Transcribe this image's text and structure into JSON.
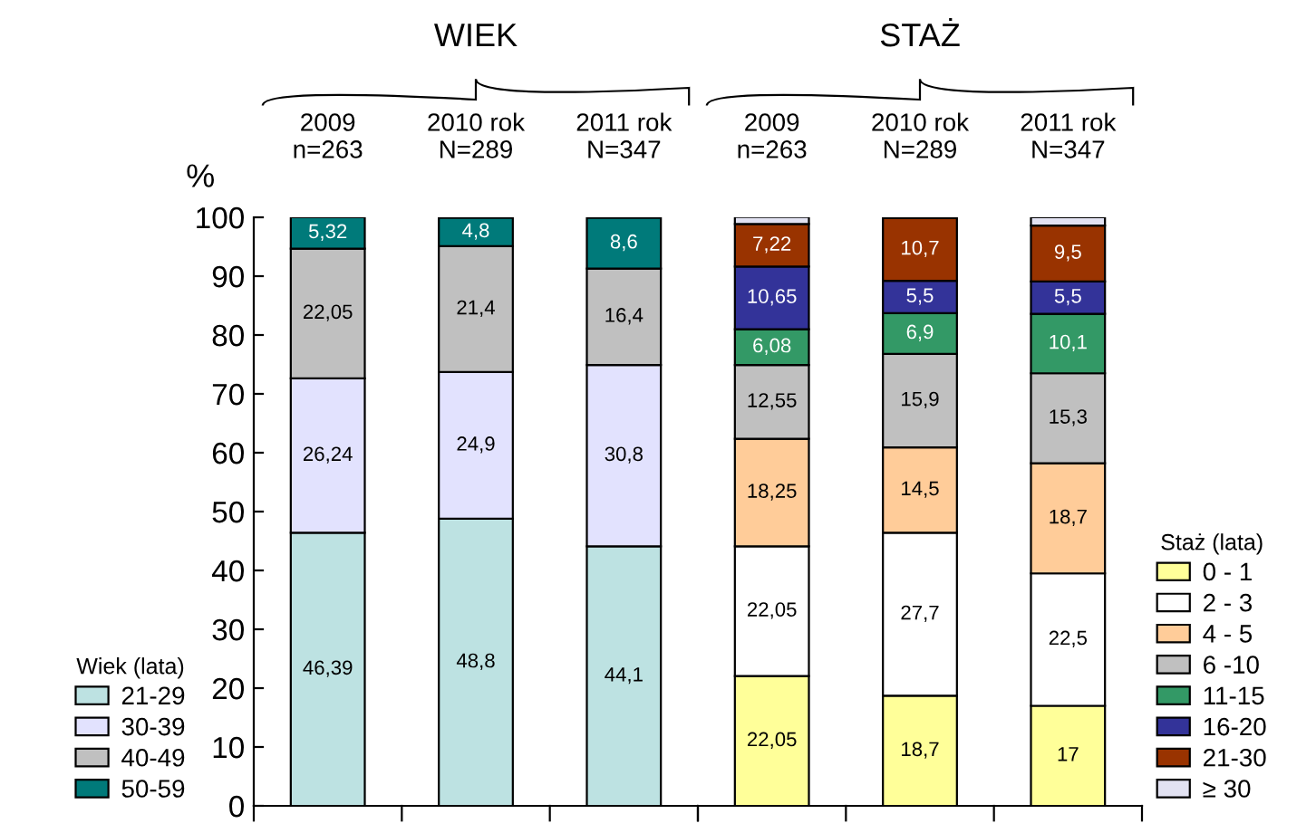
{
  "chart_data": [
    {
      "type": "bar",
      "title": "WIEK",
      "ylabel": "%",
      "categories": [
        "2009\nn=263",
        "2010 rok\nN=289",
        "2011 rok\nN=347"
      ],
      "stacked": true,
      "ylim": [
        0,
        100
      ],
      "yticks": [
        0,
        10,
        20,
        30,
        40,
        50,
        60,
        70,
        80,
        90,
        100
      ],
      "grid": false,
      "legend": "bottom left",
      "legend_title": "Wiek (lata)",
      "series": [
        {
          "name": "21-29",
          "color": "#bde2e2",
          "values": [
            46.39,
            48.8,
            44.1
          ],
          "value_labels": [
            "46,39",
            "48,8",
            "44,1"
          ]
        },
        {
          "name": "30-39",
          "color": "#e2e2fe",
          "values": [
            26.24,
            24.9,
            30.8
          ],
          "value_labels": [
            "26,24",
            "24,9",
            "30,8"
          ]
        },
        {
          "name": "40-49",
          "color": "#c0c0c0",
          "values": [
            22.05,
            21.4,
            16.4
          ],
          "value_labels": [
            "22,05",
            "21,4",
            "16,4"
          ]
        },
        {
          "name": "50-59",
          "color": "#007a7a",
          "values": [
            5.32,
            4.8,
            8.6
          ],
          "value_labels": [
            "5,32",
            "4,8",
            "8,6"
          ]
        }
      ]
    },
    {
      "type": "bar",
      "title": "STAŻ",
      "categories": [
        "2009\nn=263",
        "2010 rok\nN=289",
        "2011 rok\nN=347"
      ],
      "stacked": true,
      "ylim": [
        0,
        100
      ],
      "tick_labels": "x",
      "grid": false,
      "legend": "right",
      "legend_title": "Staż (lata)",
      "series": [
        {
          "name": "0 - 1",
          "color": "#ffff99",
          "values": [
            22.05,
            18.7,
            17
          ],
          "value_labels": [
            "22,05",
            "18,7",
            "17"
          ]
        },
        {
          "name": "2 - 3",
          "color": "#ffffff",
          "values": [
            22.05,
            27.7,
            22.5
          ],
          "value_labels": [
            "22,05",
            "27,7",
            "22,5"
          ]
        },
        {
          "name": "4 - 5",
          "color": "#ffcc99",
          "values": [
            18.25,
            14.5,
            18.7
          ],
          "value_labels": [
            "18,25",
            "14,5",
            "18,7"
          ]
        },
        {
          "name": "6 -10",
          "color": "#c0c0c0",
          "values": [
            12.55,
            15.9,
            15.3
          ],
          "value_labels": [
            "12,55",
            "15,9",
            "15,3"
          ]
        },
        {
          "name": "11-15",
          "color": "#339966",
          "values": [
            6.08,
            6.9,
            10.1
          ],
          "value_labels": [
            "6,08",
            "6,9",
            "10,1"
          ]
        },
        {
          "name": "16-20",
          "color": "#333399",
          "values": [
            10.65,
            5.5,
            5.5
          ],
          "value_labels": [
            "10,65",
            "5,5",
            "5,5"
          ]
        },
        {
          "name": "21-30",
          "color": "#993300",
          "values": [
            7.22,
            10.7,
            9.5
          ],
          "value_labels": [
            "7,22",
            "10,7",
            "9,5"
          ]
        },
        {
          "name": "≥ 30",
          "color": "#e2e2f2",
          "values": [
            1.2,
            null,
            1.4
          ],
          "value_labels": [
            null,
            null,
            null
          ]
        }
      ]
    }
  ]
}
